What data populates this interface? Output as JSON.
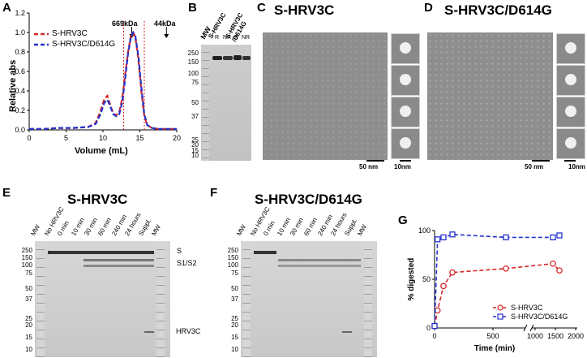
{
  "panels": {
    "A": "A",
    "B": "B",
    "C": "C",
    "D": "D",
    "E": "E",
    "F": "F",
    "G": "G"
  },
  "panelA": {
    "ylabel": "Relative abs",
    "xlabel": "Volume (mL)",
    "yticks": [
      "0.0",
      "0.2",
      "0.4",
      "0.6",
      "0.8",
      "1.0",
      "1.2"
    ],
    "xticks": [
      "0",
      "5",
      "10",
      "15",
      "20"
    ],
    "marker1": "669kDa",
    "marker2": "44kDa",
    "legend": [
      "S-HRV3C",
      "S-HRV3C/D614G"
    ]
  },
  "panelB": {
    "mw": "MW",
    "lane1": "S-HRV3C",
    "lane2": "S-HRV3C\n/D614G",
    "lane2a": "S-HRV3C",
    "lane2b": "/D614G",
    "r": "R",
    "nr": "NR",
    "markers": [
      "250",
      "150",
      "100",
      "75",
      "50",
      "37",
      "25",
      "20",
      "15",
      "10"
    ]
  },
  "panelC": {
    "title": "S-HRV3C",
    "scale1": "50 nm",
    "scale2": "10nm"
  },
  "panelD": {
    "title": "S-HRV3C/D614G",
    "scale1": "50 nm",
    "scale2": "10nm"
  },
  "panelE": {
    "title": "S-HRV3C",
    "lanes": [
      "MW",
      "No HRV3C",
      "0 min",
      "10 min",
      "30 min",
      "60 min",
      "240 min",
      "24 hours",
      "Suppl.",
      "MW"
    ],
    "markers": [
      "250",
      "150",
      "100",
      "75",
      "50",
      "37",
      "25",
      "20",
      "15",
      "10"
    ],
    "bands": [
      "S",
      "S1/S2",
      "HRV3C"
    ]
  },
  "panelF": {
    "title": "S-HRV3C/D614G",
    "lanes": [
      "MW",
      "No HRV3C",
      "0 min",
      "10 min",
      "30 min",
      "60 min",
      "240 min",
      "24 hours",
      "Suppl.",
      "MW"
    ],
    "markers": [
      "250",
      "150",
      "100",
      "75",
      "50",
      "37",
      "25",
      "20",
      "15",
      "10"
    ]
  },
  "chart_data": [
    {
      "type": "line",
      "title": "",
      "xlabel": "Volume (mL)",
      "ylabel": "Relative abs",
      "xlim": [
        0,
        20
      ],
      "ylim": [
        0,
        1.2
      ],
      "series": [
        {
          "name": "S-HRV3C",
          "color": "#d62728",
          "x": [
            0,
            2,
            4,
            6,
            8,
            9,
            9.6,
            10.2,
            10.6,
            11,
            11.4,
            11.8,
            12.2,
            12.6,
            13,
            13.4,
            13.8,
            14.1,
            14.4,
            14.8,
            15.2,
            15.6,
            16,
            16.6,
            17.5,
            19,
            20
          ],
          "y": [
            0.01,
            0.01,
            0.02,
            0.02,
            0.03,
            0.07,
            0.18,
            0.32,
            0.35,
            0.25,
            0.17,
            0.15,
            0.18,
            0.32,
            0.56,
            0.8,
            0.97,
            1.0,
            0.95,
            0.72,
            0.4,
            0.14,
            0.05,
            0.02,
            0.01,
            0.01,
            0.01
          ]
        },
        {
          "name": "S-HRV3C/D614G",
          "color": "#2233cc",
          "x": [
            0,
            2,
            4,
            6,
            8,
            9,
            9.6,
            10.2,
            10.6,
            11,
            11.4,
            11.8,
            12.2,
            12.6,
            13,
            13.4,
            13.8,
            14.1,
            14.4,
            14.8,
            15.2,
            15.6,
            16,
            16.6,
            17.5,
            19,
            20
          ],
          "y": [
            0.01,
            0.01,
            0.02,
            0.02,
            0.03,
            0.06,
            0.15,
            0.28,
            0.31,
            0.24,
            0.16,
            0.14,
            0.16,
            0.28,
            0.52,
            0.78,
            0.96,
            1.0,
            0.96,
            0.76,
            0.44,
            0.16,
            0.05,
            0.02,
            0.01,
            0.01,
            0.01
          ]
        }
      ],
      "annotations": [
        "669kDa",
        "44kDa"
      ]
    },
    {
      "type": "line",
      "title": "",
      "xlabel": "Time (min)",
      "ylabel": "% digested",
      "ylim": [
        0,
        100
      ],
      "xticks": [
        "0",
        "500",
        "1000",
        "1500",
        "2000"
      ],
      "yticks": [
        "0",
        "50",
        "100"
      ],
      "x_axis_break": true,
      "series": [
        {
          "name": "S-HRV3C",
          "color": "#d62728",
          "x": [
            0,
            10,
            30,
            60,
            240,
            1440,
            1600
          ],
          "y": [
            2,
            18,
            43,
            57,
            61,
            66,
            59
          ]
        },
        {
          "name": "S-HRV3C/D614G",
          "color": "#2233cc",
          "x": [
            0,
            10,
            30,
            60,
            240,
            1440,
            1600
          ],
          "y": [
            2,
            91,
            93,
            96,
            93,
            93,
            95
          ]
        }
      ]
    }
  ]
}
